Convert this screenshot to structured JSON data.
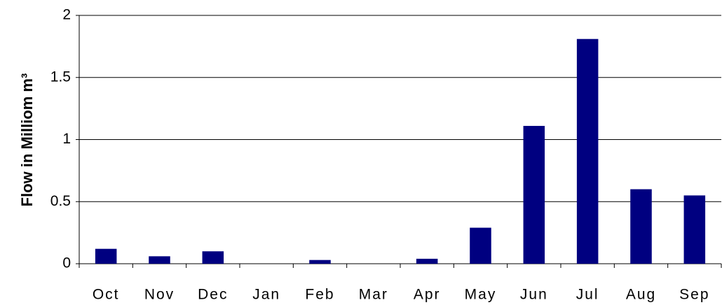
{
  "chart_data": {
    "type": "bar",
    "y_label": "Flow in Milliom m³",
    "categories": [
      "Oct",
      "Nov",
      "Dec",
      "Jan",
      "Feb",
      "Mar",
      "Apr",
      "May",
      "Jun",
      "Jul",
      "Aug",
      "Sep"
    ],
    "values": [
      0.12,
      0.06,
      0.1,
      0,
      0.03,
      0,
      0.04,
      0.29,
      1.11,
      1.81,
      0.6,
      0.55
    ],
    "color": "#000080",
    "ylim": [
      0,
      2
    ],
    "yticks": [
      0,
      0.5,
      1,
      1.5,
      2
    ],
    "grid": true
  }
}
